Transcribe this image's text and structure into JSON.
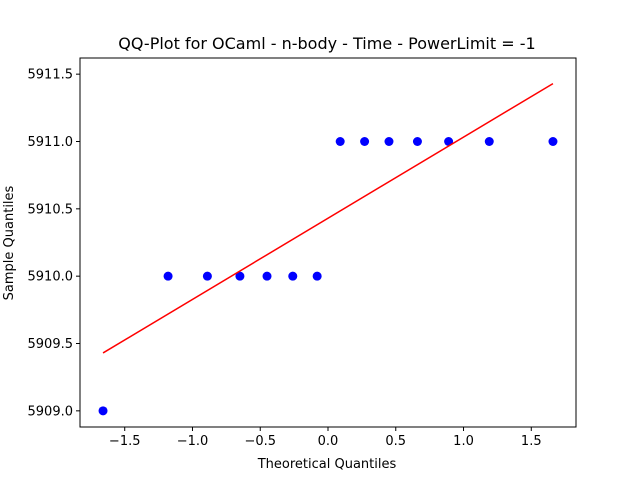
{
  "chart_data": {
    "type": "scatter",
    "title": "QQ-Plot for OCaml - n-body - Time - PowerLimit = -1",
    "xlabel": "Theoretical Quantiles",
    "ylabel": "Sample Quantiles",
    "xlim": [
      -1.83,
      1.83
    ],
    "ylim": [
      5908.88,
      5911.62
    ],
    "x_ticks": [
      -1.5,
      -1.0,
      -0.5,
      0.0,
      0.5,
      1.0,
      1.5
    ],
    "x_tick_labels": [
      "−1.5",
      "−1.0",
      "−0.5",
      "0.0",
      "0.5",
      "1.0",
      "1.5"
    ],
    "y_ticks": [
      5909.0,
      5909.5,
      5910.0,
      5910.5,
      5911.0,
      5911.5
    ],
    "y_tick_labels": [
      "5909.0",
      "5909.5",
      "5910.0",
      "5910.5",
      "5911.0",
      "5911.5"
    ],
    "grid": false,
    "series": [
      {
        "points": [
          [
            -1.66,
            5909.0
          ],
          [
            -1.18,
            5910.0
          ],
          [
            -0.89,
            5910.0
          ],
          [
            -0.65,
            5910.0
          ],
          [
            -0.45,
            5910.0
          ],
          [
            -0.26,
            5910.0
          ],
          [
            -0.08,
            5910.0
          ],
          [
            0.09,
            5911.0
          ],
          [
            0.27,
            5911.0
          ],
          [
            0.45,
            5911.0
          ],
          [
            0.66,
            5911.0
          ],
          [
            0.89,
            5911.0
          ],
          [
            1.19,
            5911.0
          ],
          [
            1.66,
            5911.0
          ]
        ],
        "color": "#0000ff"
      },
      {
        "line": [
          [
            -1.66,
            5909.43
          ],
          [
            1.66,
            5911.43
          ]
        ],
        "color": "#ff0000"
      }
    ]
  }
}
